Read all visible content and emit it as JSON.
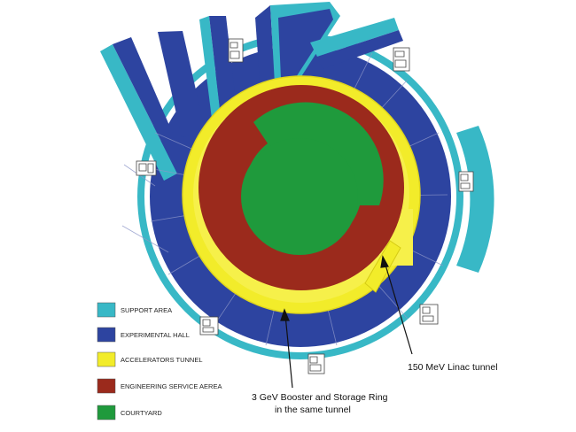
{
  "legend": [
    {
      "label": "SUPPORT AREA",
      "color": "#38b8c6"
    },
    {
      "label": "EXPERIMENTAL HALL",
      "color": "#2d44a0"
    },
    {
      "label": "ACCELERATORS TUNNEL",
      "color": "#f2ec2a"
    },
    {
      "label": "ENGINEERING SERVICE AEREA",
      "color": "#9b2a1c"
    },
    {
      "label": "COURTYARD",
      "color": "#1f9a3c"
    }
  ],
  "annotations": {
    "linac": "150 MeV Linac tunnel",
    "booster_line1": "3 GeV Booster and Storage Ring",
    "booster_line2": "in the same tunnel"
  }
}
